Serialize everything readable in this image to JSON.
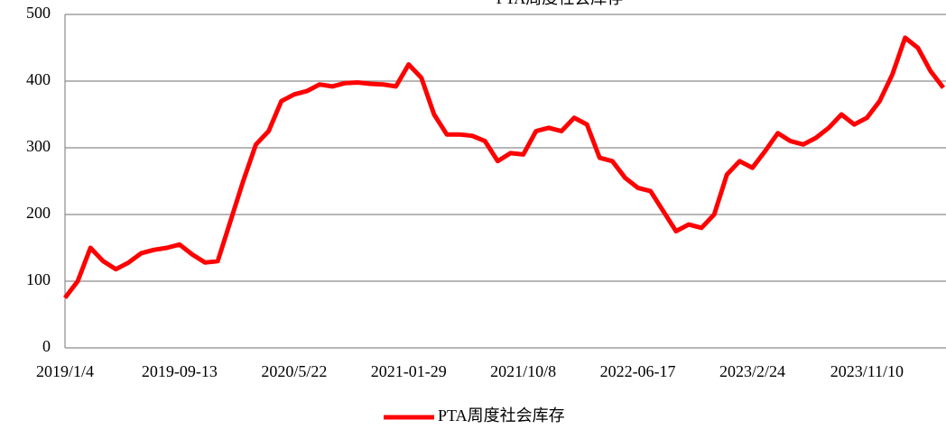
{
  "chart_data": {
    "type": "line",
    "title": "PTA周度社会库存",
    "categories": [
      "2019/1/4",
      null,
      null,
      null,
      null,
      null,
      null,
      null,
      null,
      "2019-09-13",
      null,
      null,
      null,
      null,
      null,
      null,
      null,
      null,
      "2020/5/22",
      null,
      null,
      null,
      null,
      null,
      null,
      null,
      null,
      "2021-01-29",
      null,
      null,
      null,
      null,
      null,
      null,
      null,
      null,
      "2021/10/8",
      null,
      null,
      null,
      null,
      null,
      null,
      null,
      null,
      "2022-06-17",
      null,
      null,
      null,
      null,
      null,
      null,
      null,
      null,
      "2023/2/24",
      null,
      null,
      null,
      null,
      null,
      null,
      null,
      null,
      "2023/11/10",
      null,
      null,
      null,
      null,
      null,
      null
    ],
    "series": [
      {
        "name": "PTA周度社会库存",
        "color": "#ff0000",
        "values": [
          75,
          100,
          150,
          130,
          118,
          128,
          142,
          147,
          150,
          155,
          140,
          128,
          130,
          190,
          250,
          305,
          325,
          370,
          380,
          385,
          395,
          392,
          397,
          398,
          396,
          395,
          392,
          425,
          405,
          350,
          320,
          320,
          318,
          310,
          280,
          292,
          290,
          325,
          330,
          325,
          345,
          335,
          285,
          280,
          255,
          240,
          235,
          205,
          175,
          185,
          180,
          200,
          260,
          280,
          270,
          295,
          322,
          310,
          305,
          315,
          330,
          350,
          335,
          345,
          370,
          410,
          465,
          450,
          415,
          390
        ]
      }
    ],
    "ylim": [
      0,
      500
    ],
    "yticks": [
      0,
      100,
      200,
      300,
      400,
      500
    ],
    "grid": true,
    "legend": "bottom"
  }
}
